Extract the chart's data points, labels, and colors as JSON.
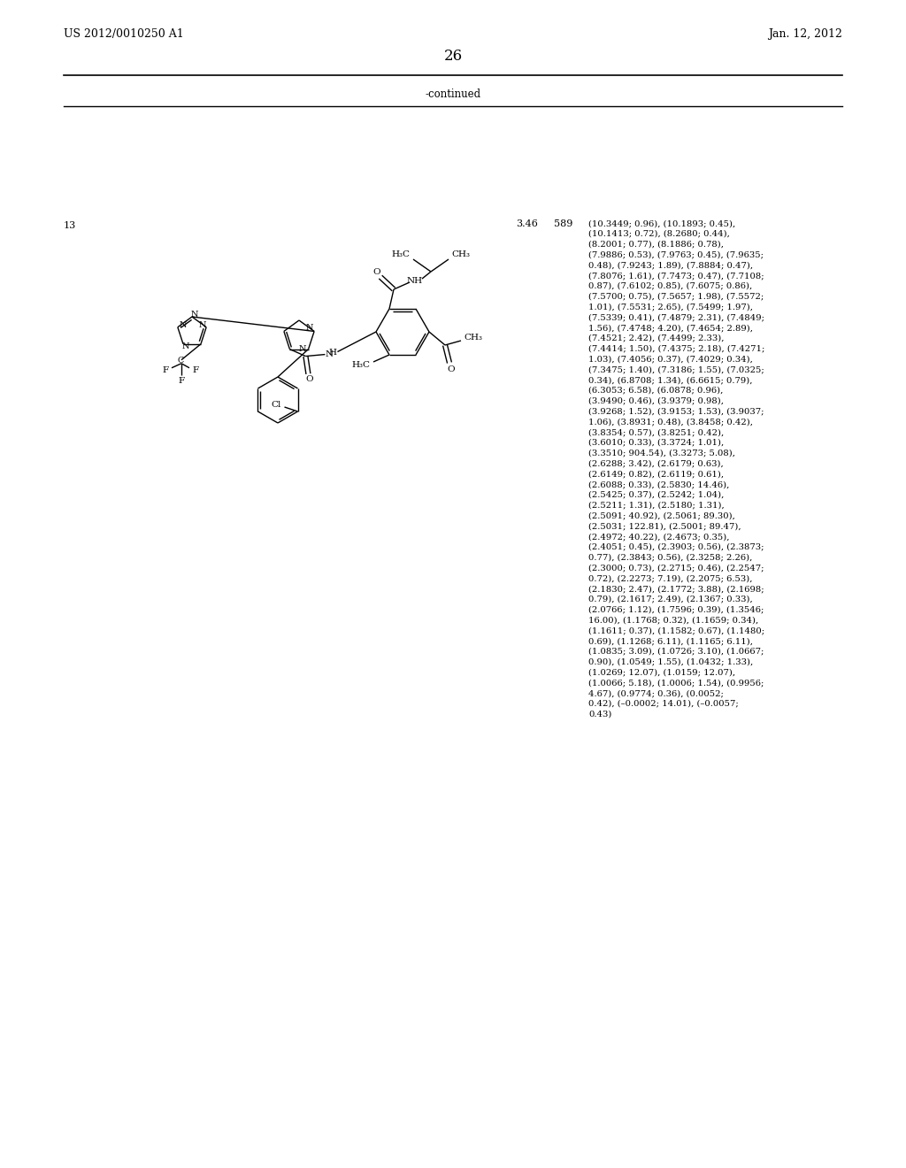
{
  "header_left": "US 2012/0010250 A1",
  "header_right": "Jan. 12, 2012",
  "page_number": "26",
  "continued_text": "-continued",
  "row_number": "13",
  "rt_value": "3.46",
  "ms_value": "589",
  "nmr_data": "(10.3449; 0.96), (10.1893; 0.45),\n(10.1413; 0.72), (8.2680; 0.44),\n(8.2001; 0.77), (8.1886; 0.78),\n(7.9886; 0.53), (7.9763; 0.45), (7.9635;\n0.48), (7.9243; 1.89), (7.8884; 0.47),\n(7.8076; 1.61), (7.7473; 0.47), (7.7108;\n0.87), (7.6102; 0.85), (7.6075; 0.86),\n(7.5700; 0.75), (7.5657; 1.98), (7.5572;\n1.01), (7.5531; 2.65), (7.5499; 1.97),\n(7.5339; 0.41), (7.4879; 2.31), (7.4849;\n1.56), (7.4748; 4.20), (7.4654; 2.89),\n(7.4521; 2.42), (7.4499; 2.33),\n(7.4414; 1.50), (7.4375; 2.18), (7.4271;\n1.03), (7.4056; 0.37), (7.4029; 0.34),\n(7.3475; 1.40), (7.3186; 1.55), (7.0325;\n0.34), (6.8708; 1.34), (6.6615; 0.79),\n(6.3053; 6.58), (6.0878; 0.96),\n(3.9490; 0.46), (3.9379; 0.98),\n(3.9268; 1.52), (3.9153; 1.53), (3.9037;\n1.06), (3.8931; 0.48), (3.8458; 0.42),\n(3.8354; 0.57), (3.8251; 0.42),\n(3.6010; 0.33), (3.3724; 1.01),\n(3.3510; 904.54), (3.3273; 5.08),\n(2.6288; 3.42), (2.6179; 0.63),\n(2.6149; 0.82), (2.6119; 0.61),\n(2.6088; 0.33), (2.5830; 14.46),\n(2.5425; 0.37), (2.5242; 1.04),\n(2.5211; 1.31), (2.5180; 1.31),\n(2.5091; 40.92), (2.5061; 89.30),\n(2.5031; 122.81), (2.5001; 89.47),\n(2.4972; 40.22), (2.4673; 0.35),\n(2.4051; 0.45), (2.3903; 0.56), (2.3873;\n0.77), (2.3843; 0.56), (2.3258; 2.26),\n(2.3000; 0.73), (2.2715; 0.46), (2.2547;\n0.72), (2.2273; 7.19), (2.2075; 6.53),\n(2.1830; 2.47), (2.1772; 3.88), (2.1698;\n0.79), (2.1617; 2.49), (2.1367; 0.33),\n(2.0766; 1.12), (1.7596; 0.39), (1.3546;\n16.00), (1.1768; 0.32), (1.1659; 0.34),\n(1.1611; 0.37), (1.1582; 0.67), (1.1480;\n0.69), (1.1268; 6.11), (1.1165; 6.11),\n(1.0835; 3.09), (1.0726; 3.10), (1.0667;\n0.90), (1.0549; 1.55), (1.0432; 1.33),\n(1.0269; 12.07), (1.0159; 12.07),\n(1.0066; 5.18), (1.0006; 1.54), (0.9956;\n4.67), (0.9774; 0.36), (0.0052;\n0.42), (–0.0002; 14.01), (–0.0057;\n0.43)",
  "bg_color": "#ffffff",
  "text_color": "#000000",
  "lw": 1.0
}
